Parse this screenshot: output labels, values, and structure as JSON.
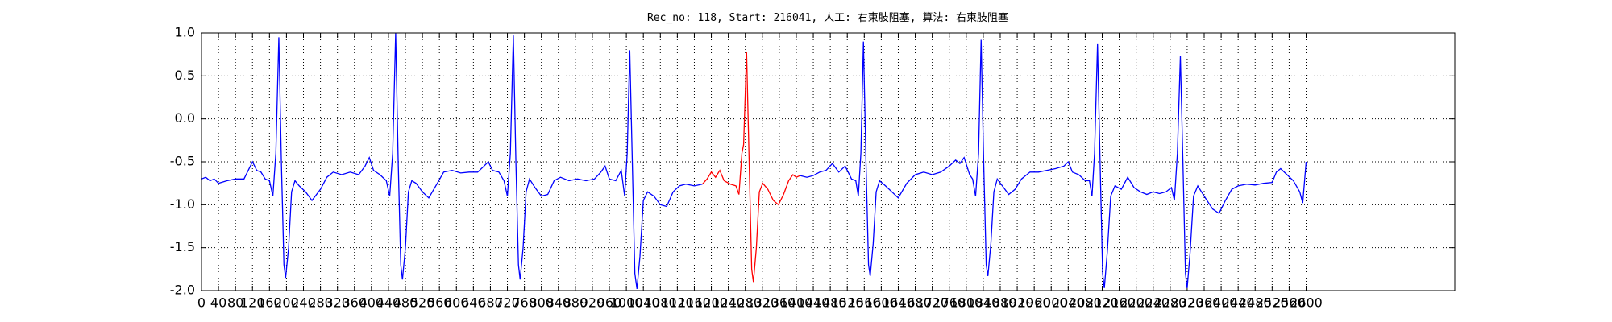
{
  "chart_data": {
    "type": "line",
    "title": "Rec_no: 118, Start: 216041, 人工: 右束肢阻塞, 算法: 右束肢阻塞",
    "xlim": [
      0,
      2950
    ],
    "xticks": [
      0,
      40,
      80,
      120,
      160,
      200,
      240,
      280,
      320,
      360,
      400,
      440,
      480,
      520,
      560,
      600,
      640,
      680,
      720,
      760,
      800,
      840,
      880,
      920,
      960,
      1000,
      1040,
      1080,
      1120,
      1160,
      1200,
      1240,
      1280,
      1320,
      1360,
      1400,
      1440,
      1480,
      1520,
      1560,
      1600,
      1640,
      1680,
      1720,
      1760,
      1800,
      1840,
      1880,
      1920,
      1960,
      2000,
      2040,
      2080,
      2120,
      2160,
      2200,
      2240,
      2280,
      2320,
      2360,
      2400,
      2440,
      2480,
      2520,
      2560,
      2600
    ],
    "ylim": [
      -2.0,
      1.0
    ],
    "yticks": [
      {
        "value": -2.0,
        "label": "-2.0"
      },
      -1.5,
      {
        "value": -1.0,
        "label": "-1.0"
      },
      -0.5,
      {
        "value": 0.0,
        "label": "0.0"
      },
      0.5,
      {
        "value": 1.0,
        "label": "1.0"
      }
    ],
    "grid": true,
    "series": [
      {
        "color": "#0000ff",
        "x": [
          0,
          10,
          20,
          30,
          40,
          60,
          80,
          100,
          110,
          120,
          130,
          140,
          150,
          160,
          168,
          175,
          182,
          188,
          194,
          198,
          205,
          212,
          220,
          230,
          245,
          260,
          280,
          295,
          310,
          330,
          350,
          370,
          385,
          395,
          405,
          420,
          435,
          443,
          450,
          457,
          463,
          469,
          473,
          480,
          487,
          495,
          505,
          520,
          535,
          555,
          570,
          590,
          610,
          630,
          650,
          665,
          675,
          685,
          700,
          712,
          720,
          727,
          734,
          740,
          746,
          750,
          757,
          764,
          772,
          785,
          800,
          815,
          830,
          845,
          865,
          885,
          905,
          925,
          940,
          950,
          960,
          975,
          988,
          996,
          1002,
          1008,
          1014,
          1020,
          1025,
          1032,
          1040,
          1050,
          1065,
          1080,
          1095,
          1110,
          1125,
          1140,
          1160,
          1179,
          1294,
          1409,
          1425,
          1440,
          1455,
          1470,
          1485,
          1500,
          1515,
          1530,
          1540,
          1546,
          1552,
          1558,
          1564,
          1570,
          1574,
          1581,
          1588,
          1596,
          1610,
          1625,
          1640,
          1660,
          1680,
          1700,
          1720,
          1740,
          1760,
          1775,
          1785,
          1795,
          1808,
          1815,
          1822,
          1829,
          1835,
          1841,
          1847,
          1851,
          1858,
          1865,
          1873,
          1888,
          1900,
          1915,
          1930,
          1950,
          1970,
          1990,
          2010,
          2030,
          2040,
          2050,
          2065,
          2080,
          2090,
          2096,
          2102,
          2109,
          2115,
          2121,
          2125,
          2132,
          2140,
          2150,
          2165,
          2180,
          2195,
          2210,
          2225,
          2240,
          2255,
          2270,
          2283,
          2290,
          2297,
          2304,
          2310,
          2316,
          2320,
          2327,
          2335,
          2345,
          2360,
          2380,
          2395,
          2410,
          2425,
          2440,
          2460,
          2480,
          2500,
          2520,
          2530,
          2540,
          2555,
          2570,
          2585,
          2592,
          2600
        ],
        "values": [
          -0.7,
          -0.68,
          -0.72,
          -0.7,
          -0.75,
          -0.72,
          -0.7,
          -0.7,
          -0.6,
          -0.5,
          -0.6,
          -0.62,
          -0.7,
          -0.72,
          -0.9,
          -0.4,
          0.95,
          -0.5,
          -1.7,
          -1.85,
          -1.5,
          -0.85,
          -0.72,
          -0.78,
          -0.85,
          -0.95,
          -0.82,
          -0.68,
          -0.62,
          -0.65,
          -0.62,
          -0.65,
          -0.55,
          -0.45,
          -0.6,
          -0.65,
          -0.72,
          -0.9,
          -0.4,
          1.0,
          -0.5,
          -1.7,
          -1.87,
          -1.5,
          -0.85,
          -0.72,
          -0.75,
          -0.85,
          -0.92,
          -0.75,
          -0.62,
          -0.6,
          -0.63,
          -0.62,
          -0.62,
          -0.55,
          -0.5,
          -0.6,
          -0.62,
          -0.72,
          -0.9,
          -0.4,
          0.97,
          -0.5,
          -1.7,
          -1.87,
          -1.5,
          -0.85,
          -0.7,
          -0.8,
          -0.9,
          -0.88,
          -0.72,
          -0.68,
          -0.72,
          -0.7,
          -0.72,
          -0.7,
          -0.62,
          -0.55,
          -0.7,
          -0.72,
          -0.6,
          -0.9,
          -0.4,
          0.8,
          -0.5,
          -1.8,
          -1.98,
          -1.6,
          -0.95,
          -0.85,
          -0.9,
          -1.0,
          -1.02,
          -0.85,
          -0.78,
          -0.76,
          -0.78,
          -0.76,
          null,
          -0.66,
          -0.68,
          -0.66,
          -0.62,
          -0.6,
          -0.52,
          -0.62,
          -0.55,
          -0.7,
          -0.72,
          -0.9,
          -0.4,
          0.9,
          -0.5,
          -1.7,
          -1.83,
          -1.45,
          -0.85,
          -0.72,
          -0.78,
          -0.85,
          -0.92,
          -0.75,
          -0.65,
          -0.62,
          -0.65,
          -0.62,
          -0.55,
          -0.48,
          -0.52,
          -0.45,
          -0.65,
          -0.7,
          -0.9,
          -0.4,
          0.92,
          -0.5,
          -1.7,
          -1.83,
          -1.45,
          -0.85,
          -0.7,
          -0.8,
          -0.88,
          -0.82,
          -0.7,
          -0.62,
          -0.62,
          -0.6,
          -0.58,
          -0.55,
          -0.5,
          -0.62,
          -0.65,
          -0.72,
          -0.72,
          -0.9,
          -0.4,
          0.87,
          -0.5,
          -1.8,
          -1.97,
          -1.55,
          -0.9,
          -0.78,
          -0.82,
          -0.68,
          -0.8,
          -0.85,
          -0.88,
          -0.85,
          -0.87,
          -0.85,
          -0.8,
          -0.95,
          -0.4,
          0.73,
          -0.5,
          -1.8,
          -1.97,
          -1.55,
          -0.9,
          -0.78,
          -0.9,
          -1.05,
          -1.1,
          -0.95,
          -0.82,
          -0.78,
          -0.76,
          -0.77,
          -0.75,
          -0.74,
          -0.62,
          -0.58,
          -0.65,
          -0.72,
          -0.85,
          -0.98,
          -0.5
        ]
      },
      {
        "color": "#ff0000",
        "x": [
          1179,
          1190,
          1200,
          1210,
          1220,
          1230,
          1245,
          1258,
          1265,
          1272,
          1276,
          1283,
          1289,
          1295,
          1299,
          1306,
          1313,
          1321,
          1333,
          1346,
          1358,
          1370,
          1382,
          1392,
          1400,
          1409
        ],
        "values": [
          -0.76,
          -0.7,
          -0.62,
          -0.68,
          -0.6,
          -0.72,
          -0.76,
          -0.78,
          -0.88,
          -0.4,
          -0.3,
          0.78,
          -0.5,
          -1.75,
          -1.9,
          -1.5,
          -0.85,
          -0.75,
          -0.82,
          -0.95,
          -1.0,
          -0.88,
          -0.72,
          -0.65,
          -0.68,
          -0.66
        ]
      }
    ]
  }
}
